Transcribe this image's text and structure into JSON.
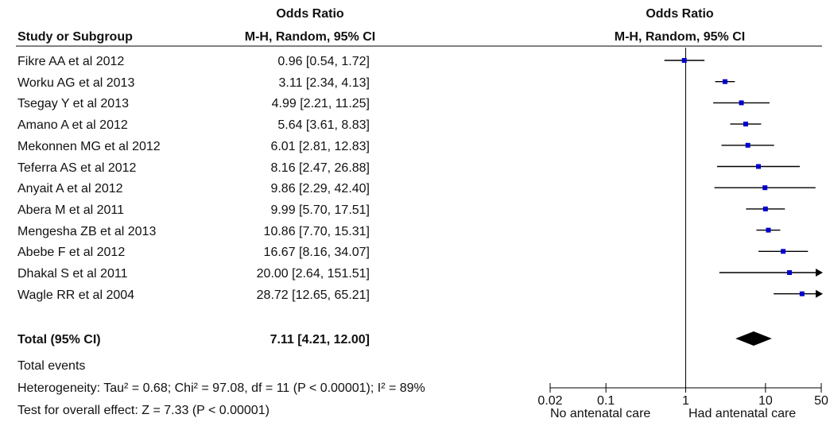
{
  "header": {
    "left_group_title": "Odds Ratio",
    "left_group_subtitle": "M-H, Random, 95% CI",
    "study_col_label": "Study or Subgroup",
    "plot_group_title": "Odds Ratio",
    "plot_group_subtitle": "M-H, Random, 95% CI"
  },
  "studies": [
    {
      "name": "Fikre AA et al 2012",
      "ci_text": "0.96 [0.54, 1.72]"
    },
    {
      "name": "Worku AG et al 2013",
      "ci_text": "3.11 [2.34, 4.13]"
    },
    {
      "name": "Tsegay Y et al 2013",
      "ci_text": "4.99 [2.21, 11.25]"
    },
    {
      "name": "Amano A et al 2012",
      "ci_text": "5.64 [3.61, 8.83]"
    },
    {
      "name": "Mekonnen MG et al 2012",
      "ci_text": "6.01 [2.81, 12.83]"
    },
    {
      "name": "Teferra AS et al 2012",
      "ci_text": "8.16 [2.47, 26.88]"
    },
    {
      "name": "Anyait A et al 2012",
      "ci_text": "9.86 [2.29, 42.40]"
    },
    {
      "name": "Abera M et al 2011",
      "ci_text": "9.99 [5.70, 17.51]"
    },
    {
      "name": "Mengesha ZB et al 2013",
      "ci_text": "10.86 [7.70, 15.31]"
    },
    {
      "name": "Abebe F et al 2012",
      "ci_text": "16.67 [8.16, 34.07]"
    },
    {
      "name": "Dhakal S et al 2011",
      "ci_text": "20.00 [2.64, 151.51]"
    },
    {
      "name": "Wagle RR et al 2004",
      "ci_text": "28.72 [12.65, 65.21]"
    }
  ],
  "total": {
    "label": "Total (95% CI)",
    "ci_text": "7.11 [4.21, 12.00]"
  },
  "footer": {
    "total_events": "Total events",
    "heterogeneity": "Heterogeneity: Tau² = 0.68; Chi² = 97.08, df = 11 (P < 0.00001); I² = 89%",
    "overall_effect": "Test for overall effect: Z = 7.33 (P < 0.00001)"
  },
  "axis": {
    "left_label": "No antenatal care",
    "right_label": "Had antenatal care"
  },
  "chart_data": {
    "type": "forest",
    "scale": "log",
    "xlim": [
      0.02,
      50
    ],
    "reference_line": 1,
    "ticks": [
      {
        "value": 0.02,
        "label": "0.02"
      },
      {
        "value": 0.1,
        "label": "0.1"
      },
      {
        "value": 1,
        "label": "1"
      },
      {
        "value": 10,
        "label": "10"
      },
      {
        "value": 50,
        "label": "50"
      }
    ],
    "study_estimates": [
      {
        "or": 0.96,
        "lo": 0.54,
        "hi": 1.72
      },
      {
        "or": 3.11,
        "lo": 2.34,
        "hi": 4.13
      },
      {
        "or": 4.99,
        "lo": 2.21,
        "hi": 11.25
      },
      {
        "or": 5.64,
        "lo": 3.61,
        "hi": 8.83
      },
      {
        "or": 6.01,
        "lo": 2.81,
        "hi": 12.83
      },
      {
        "or": 8.16,
        "lo": 2.47,
        "hi": 26.88
      },
      {
        "or": 9.86,
        "lo": 2.29,
        "hi": 42.4
      },
      {
        "or": 9.99,
        "lo": 5.7,
        "hi": 17.51
      },
      {
        "or": 10.86,
        "lo": 7.7,
        "hi": 15.31
      },
      {
        "or": 16.67,
        "lo": 8.16,
        "hi": 34.07
      },
      {
        "or": 20.0,
        "lo": 2.64,
        "hi": 151.51
      },
      {
        "or": 28.72,
        "lo": 12.65,
        "hi": 65.21
      }
    ],
    "pooled": {
      "or": 7.11,
      "lo": 4.21,
      "hi": 12.0
    },
    "marker_color": "#0000cc",
    "diamond_color": "#000000"
  }
}
